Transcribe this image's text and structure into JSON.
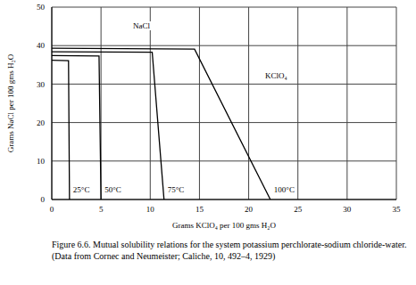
{
  "chart_data": {
    "type": "line",
    "caption": "Figure 6.6. Mutual solubility relations for the system potassium perchlorate-sodium chloride-water. (Data from Cornec and Neumeister; Caliche, 10, 492–4, 1929)",
    "x_label": "Grams KClO₄ per 100 gms H₂O",
    "y_label": "Grams NaCl per 100 gms H₂O",
    "annotations": [
      "NaCl",
      "KClO₄"
    ],
    "xlim": [
      0,
      35
    ],
    "xticks": [
      0,
      5,
      10,
      15,
      20,
      25,
      30,
      35
    ],
    "ylim": [
      0,
      50
    ],
    "yticks": [
      0,
      10,
      20,
      30,
      40,
      50
    ],
    "grid": true,
    "series": [
      {
        "name": "25°C",
        "color": "#000000",
        "x": [
          0,
          1.7,
          1.8
        ],
        "values": [
          36.2,
          36.1,
          0
        ]
      },
      {
        "name": "50°C",
        "color": "#000000",
        "x": [
          0,
          4.8,
          5.0
        ],
        "values": [
          37.4,
          37.3,
          0
        ]
      },
      {
        "name": "75°C",
        "color": "#000000",
        "x": [
          0,
          10.2,
          11.4
        ],
        "values": [
          38.4,
          38.3,
          0
        ]
      },
      {
        "name": "100°C",
        "color": "#000000",
        "x": [
          0,
          14.5,
          22.2
        ],
        "values": [
          39.3,
          39.1,
          0
        ]
      }
    ]
  }
}
